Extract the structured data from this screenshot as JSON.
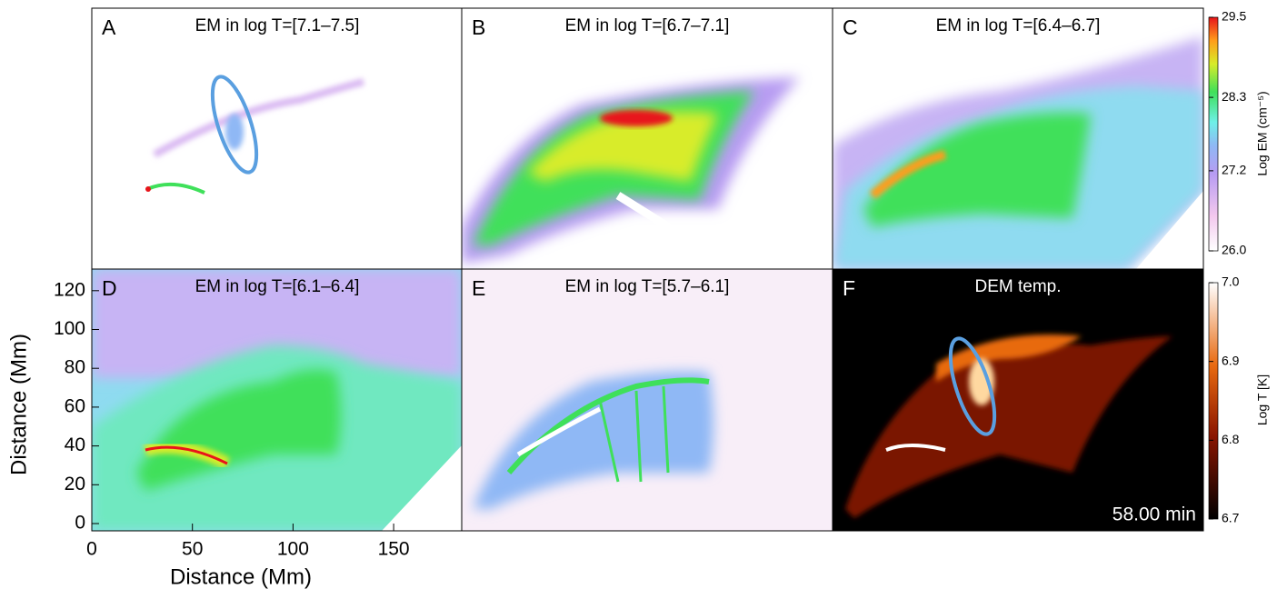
{
  "panels": [
    {
      "letter": "A",
      "title": "EM in log T=[7.1–7.5]"
    },
    {
      "letter": "B",
      "title": "EM in log T=[6.7–7.1]"
    },
    {
      "letter": "C",
      "title": "EM in log T=[6.4–6.7]"
    },
    {
      "letter": "D",
      "title": "EM in log T=[6.1–6.4]"
    },
    {
      "letter": "E",
      "title": "EM in log T=[5.7–6.1]"
    },
    {
      "letter": "F",
      "title": "DEM temp."
    }
  ],
  "axes": {
    "x_label": "Distance (Mm)",
    "y_label": "Distance (Mm)",
    "x_ticks": [
      "0",
      "50",
      "100",
      "150"
    ],
    "y_ticks": [
      "0",
      "20",
      "40",
      "60",
      "80",
      "100",
      "120"
    ]
  },
  "colorbars": [
    {
      "label": "Log EM (cm⁻⁵)",
      "ticks": [
        "26.0",
        "27.2",
        "28.3",
        "29.5"
      ]
    },
    {
      "label": "Log T [K]",
      "ticks": [
        "6.7",
        "6.8",
        "6.9",
        "7.0"
      ]
    }
  ],
  "timestamp": "58.00 min"
}
